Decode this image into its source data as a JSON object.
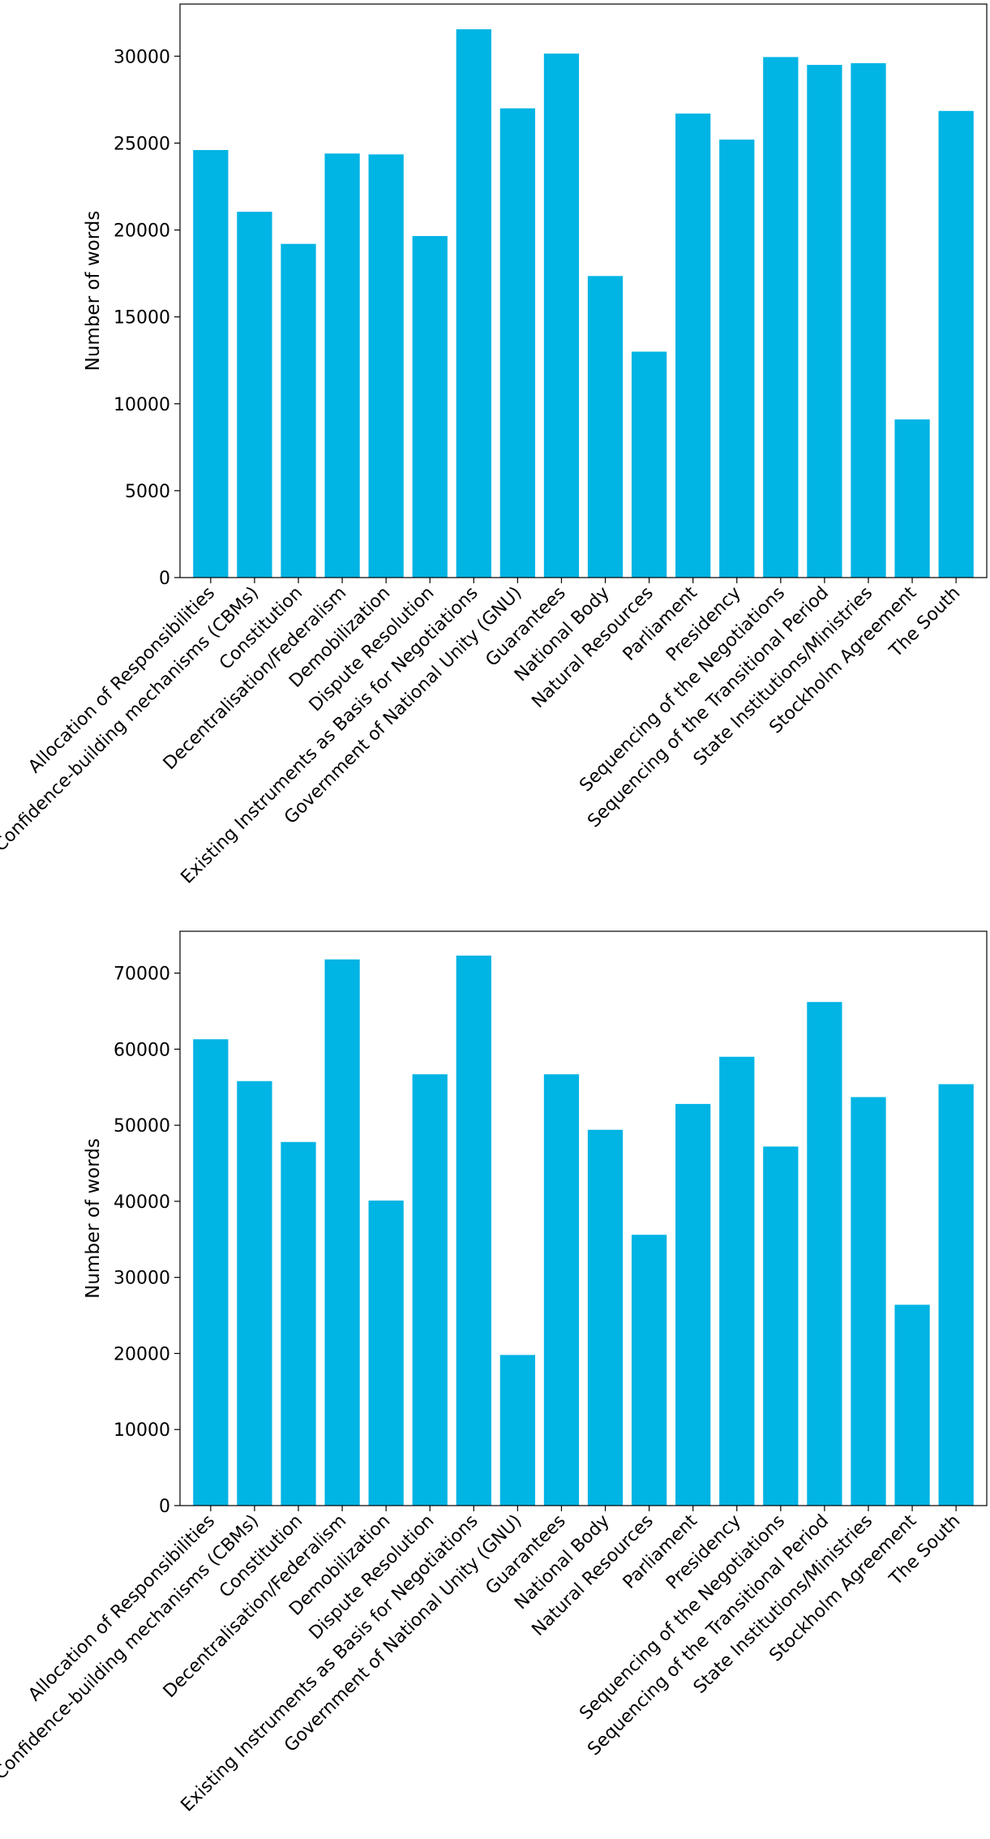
{
  "chart_data": [
    {
      "type": "bar",
      "title": "",
      "xlabel": "",
      "ylabel": "Number of words",
      "ylim": [
        0,
        33000
      ],
      "yticks": [
        0,
        5000,
        10000,
        15000,
        20000,
        25000,
        30000
      ],
      "grid": false,
      "bar_color": "#00b4e4",
      "categories": [
        "Allocation of Responsibilities",
        "Confidence-building mechanisms (CBMs)",
        "Constitution",
        "Decentralisation/Federalism",
        "Demobilization",
        "Dispute Resolution",
        "Existing Instruments as Basis for Negotiations",
        "Government of National Unity (GNU)",
        "Guarantees",
        "National Body",
        "Natural Resources",
        "Parliament",
        "Presidency",
        "Sequencing of the Negotiations",
        "Sequencing of the Transitional Period",
        "State Institutions/Ministries",
        "Stockholm Agreement",
        "The South"
      ],
      "values": [
        24600,
        21050,
        19200,
        24400,
        24350,
        19650,
        31550,
        27000,
        30150,
        17350,
        13000,
        26700,
        25200,
        29950,
        29500,
        29600,
        9100,
        26850
      ]
    },
    {
      "type": "bar",
      "title": "",
      "xlabel": "",
      "ylabel": "Number of words",
      "ylim": [
        0,
        75500
      ],
      "yticks": [
        0,
        10000,
        20000,
        30000,
        40000,
        50000,
        60000,
        70000
      ],
      "grid": false,
      "bar_color": "#00b4e4",
      "categories": [
        "Allocation of Responsibilities",
        "Confidence-building mechanisms (CBMs)",
        "Constitution",
        "Decentralisation/Federalism",
        "Demobilization",
        "Dispute Resolution",
        "Existing Instruments as Basis for Negotiations",
        "Government of National Unity (GNU)",
        "Guarantees",
        "National Body",
        "Natural Resources",
        "Parliament",
        "Presidency",
        "Sequencing of the Negotiations",
        "Sequencing of the Transitional Period",
        "State Institutions/Ministries",
        "Stockholm Agreement",
        "The South"
      ],
      "values": [
        61300,
        55800,
        47800,
        71800,
        40100,
        56700,
        72300,
        19800,
        56700,
        49400,
        35600,
        52800,
        59000,
        47200,
        66200,
        53700,
        26400,
        55400
      ]
    }
  ]
}
